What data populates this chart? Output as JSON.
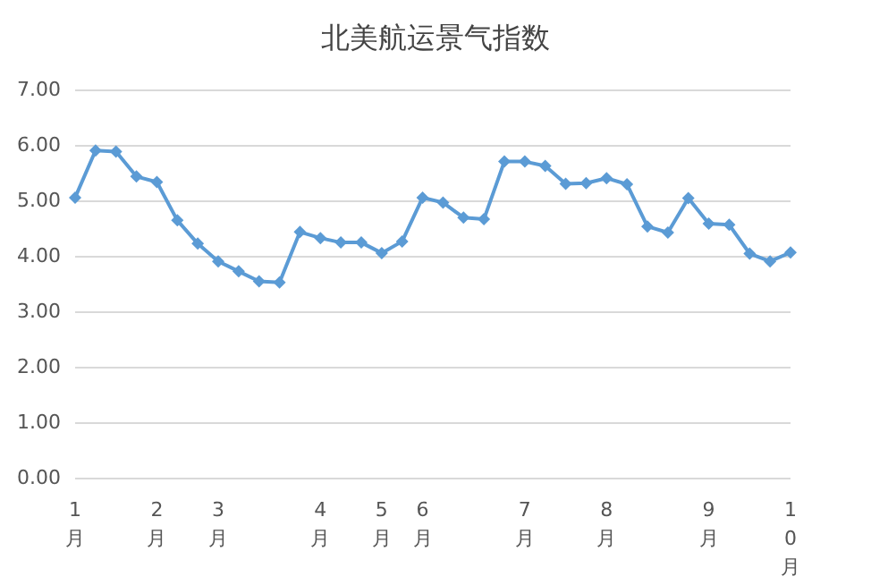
{
  "chart_data": {
    "type": "line",
    "title": "北美航运景气指数",
    "categories": [
      "1月",
      null,
      null,
      null,
      "2月",
      null,
      null,
      "3月",
      null,
      null,
      null,
      null,
      "4月",
      null,
      null,
      "5月",
      null,
      "6月",
      null,
      null,
      null,
      null,
      "7月",
      null,
      null,
      null,
      "8月",
      null,
      null,
      null,
      null,
      "9月",
      null,
      null,
      null,
      "10月"
    ],
    "series": [
      {
        "color": "#5b9bd5",
        "values": [
          5.05,
          5.9,
          5.88,
          5.43,
          5.33,
          4.64,
          4.22,
          3.9,
          3.72,
          3.54,
          3.52,
          4.43,
          4.32,
          4.24,
          4.24,
          4.05,
          4.26,
          5.05,
          4.96,
          4.69,
          4.66,
          5.7,
          5.7,
          5.62,
          5.3,
          5.31,
          5.4,
          5.29,
          4.53,
          4.42,
          5.04,
          4.58,
          4.56,
          4.04,
          3.9,
          4.06
        ]
      }
    ],
    "ylim": [
      0,
      7
    ],
    "yticks": [
      {
        "value": 0,
        "label": "0.00"
      },
      {
        "value": 1,
        "label": "1.00"
      },
      {
        "value": 2,
        "label": "2.00"
      },
      {
        "value": 3,
        "label": "3.00"
      },
      {
        "value": 4,
        "label": "4.00"
      },
      {
        "value": 5,
        "label": "5.00"
      },
      {
        "value": 6,
        "label": "6.00"
      },
      {
        "value": 7,
        "label": "7.00"
      }
    ],
    "grid": "y",
    "marker": "diamond",
    "line_style": "solid"
  }
}
